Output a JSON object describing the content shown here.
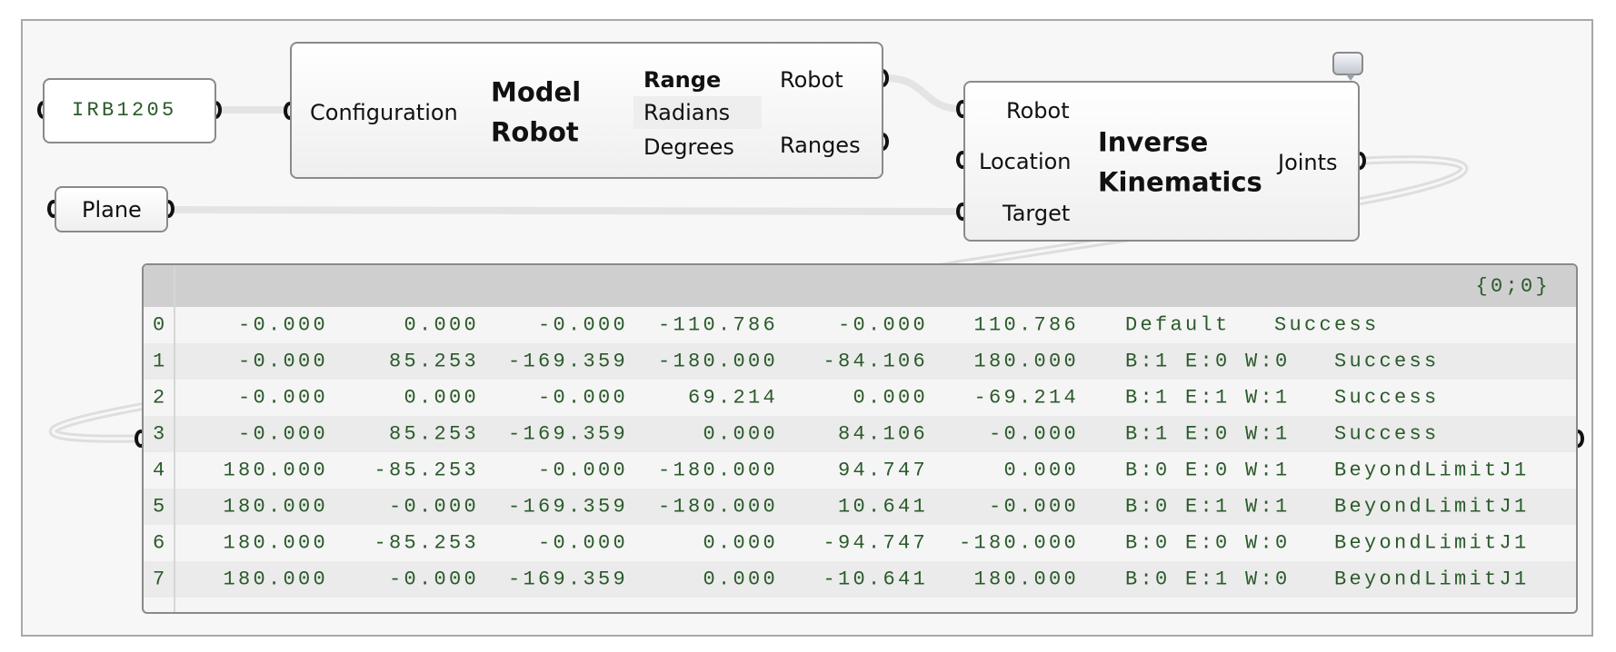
{
  "nodes": {
    "irb": {
      "value": "IRB1205"
    },
    "plane": {
      "label": "Plane"
    },
    "model_robot": {
      "input": "Configuration",
      "title_line1": "Model",
      "title_line2": "Robot",
      "range_header": "Range",
      "range_options": [
        "Radians",
        "Degrees"
      ],
      "selected_range": "Radians",
      "outputs": [
        "Robot",
        "Ranges"
      ]
    },
    "inverse_kinematics": {
      "inputs": [
        "Robot",
        "Location",
        "Target"
      ],
      "title_line1": "Inverse",
      "title_line2": "Kinematics",
      "output": "Joints",
      "balloon_icon": "speech-balloon-icon"
    }
  },
  "panel": {
    "path": "{0;0}",
    "rows": [
      {
        "index": "0",
        "values": [
          "-0.000",
          "0.000",
          "-0.000",
          "-110.786",
          "-0.000",
          "110.786"
        ],
        "config": "Default",
        "status": "Success"
      },
      {
        "index": "1",
        "values": [
          "-0.000",
          "85.253",
          "-169.359",
          "-180.000",
          "-84.106",
          "180.000"
        ],
        "config": "B:1 E:0 W:0",
        "status": "Success"
      },
      {
        "index": "2",
        "values": [
          "-0.000",
          "0.000",
          "-0.000",
          "69.214",
          "0.000",
          "-69.214"
        ],
        "config": "B:1 E:1 W:1",
        "status": "Success"
      },
      {
        "index": "3",
        "values": [
          "-0.000",
          "85.253",
          "-169.359",
          "0.000",
          "84.106",
          "-0.000"
        ],
        "config": "B:1 E:0 W:1",
        "status": "Success"
      },
      {
        "index": "4",
        "values": [
          "180.000",
          "-85.253",
          "-0.000",
          "-180.000",
          "94.747",
          "0.000"
        ],
        "config": "B:0 E:0 W:1",
        "status": "BeyondLimitJ1"
      },
      {
        "index": "5",
        "values": [
          "180.000",
          "-0.000",
          "-169.359",
          "-180.000",
          "10.641",
          "-0.000"
        ],
        "config": "B:0 E:1 W:1",
        "status": "BeyondLimitJ1"
      },
      {
        "index": "6",
        "values": [
          "180.000",
          "-85.253",
          "-0.000",
          "0.000",
          "-94.747",
          "-180.000"
        ],
        "config": "B:0 E:0 W:0",
        "status": "BeyondLimitJ1"
      },
      {
        "index": "7",
        "values": [
          "180.000",
          "-0.000",
          "-169.359",
          "0.000",
          "-10.641",
          "180.000"
        ],
        "config": "B:0 E:1 W:0",
        "status": "BeyondLimitJ1"
      }
    ]
  },
  "colors": {
    "panel_text": "#2a5a2a",
    "canvas": "#f7f7f7",
    "wire": "#e2e2e2"
  }
}
